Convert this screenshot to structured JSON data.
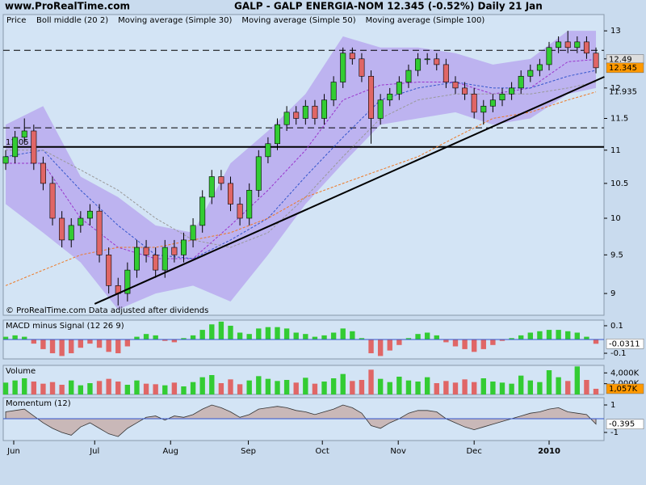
{
  "header": {
    "site": "www.ProRealTime.com",
    "title": "GALP - GALP ENERGIA-NOM    12.345 (-0.52%)    Daily  21 Jan"
  },
  "chart_data": {
    "type": "candlestick",
    "price_label": "Price",
    "footer": "© ProRealTime.com  Data adjusted after dividends",
    "log": true,
    "ylim": [
      8.73,
      13.3
    ],
    "yticks": [
      9,
      9.5,
      10,
      10.5,
      11,
      11.5,
      12,
      12.5,
      13
    ],
    "xlim": [
      -0.26,
      63.86
    ],
    "xticks": [
      {
        "value": 0.86,
        "label": "Jun"
      },
      {
        "value": 9.5,
        "label": "Jul"
      },
      {
        "value": 17.6,
        "label": "Aug"
      },
      {
        "value": 25.9,
        "label": "Sep"
      },
      {
        "value": 33.8,
        "label": "Oct"
      },
      {
        "value": 41.9,
        "label": "Nov"
      },
      {
        "value": 50,
        "label": "Dec"
      },
      {
        "value": 58,
        "label": "2010"
      }
    ],
    "up_color": "#33cc33",
    "down_color": "#e06666",
    "open": [
      10.8,
      10.9,
      11.2,
      11.3,
      10.8,
      10.5,
      10.0,
      9.7,
      9.9,
      10.0,
      10.1,
      9.5,
      9.1,
      9.0,
      9.3,
      9.6,
      9.5,
      9.3,
      9.6,
      9.5,
      9.7,
      9.9,
      10.3,
      10.6,
      10.5,
      10.2,
      10.0,
      10.4,
      10.9,
      11.1,
      11.4,
      11.6,
      11.5,
      11.7,
      11.5,
      11.8,
      12.1,
      12.6,
      12.5,
      12.2,
      11.5,
      11.8,
      11.9,
      12.1,
      12.3,
      12.5,
      12.5,
      12.4,
      12.1,
      12.0,
      11.9,
      11.6,
      11.7,
      11.8,
      11.9,
      12.0,
      12.2,
      12.3,
      12.4,
      12.7,
      12.8,
      12.7,
      12.8,
      12.6
    ],
    "high": [
      11.0,
      11.3,
      11.5,
      11.4,
      10.9,
      10.6,
      10.1,
      10.0,
      10.1,
      10.2,
      10.2,
      9.6,
      9.2,
      9.4,
      9.7,
      9.7,
      9.6,
      9.7,
      9.7,
      9.8,
      10.0,
      10.4,
      10.7,
      10.7,
      10.6,
      10.3,
      10.5,
      11.0,
      11.2,
      11.5,
      11.7,
      11.7,
      11.8,
      11.8,
      11.9,
      12.2,
      12.7,
      12.7,
      12.6,
      12.3,
      11.9,
      12.0,
      12.2,
      12.4,
      12.6,
      12.6,
      12.6,
      12.5,
      12.2,
      12.1,
      12.0,
      11.8,
      11.9,
      12.0,
      12.1,
      12.3,
      12.4,
      12.5,
      12.8,
      12.9,
      13.0,
      12.9,
      12.9,
      12.7
    ],
    "low": [
      10.7,
      10.8,
      11.1,
      10.7,
      10.4,
      9.9,
      9.6,
      9.6,
      9.8,
      9.9,
      9.4,
      9.0,
      8.85,
      8.9,
      9.2,
      9.4,
      9.2,
      9.2,
      9.4,
      9.4,
      9.6,
      9.8,
      10.2,
      10.4,
      10.1,
      9.9,
      9.9,
      10.3,
      10.8,
      11.0,
      11.3,
      11.4,
      11.4,
      11.4,
      11.4,
      11.7,
      12.0,
      12.4,
      12.1,
      11.1,
      11.4,
      11.7,
      11.8,
      12.0,
      12.2,
      12.4,
      12.3,
      12.0,
      11.9,
      11.8,
      11.5,
      11.4,
      11.6,
      11.7,
      11.8,
      11.9,
      12.1,
      12.2,
      12.3,
      12.6,
      12.6,
      12.6,
      12.5,
      12.25
    ],
    "close": [
      10.9,
      11.2,
      11.3,
      10.8,
      10.5,
      10.0,
      9.7,
      9.9,
      10.0,
      10.1,
      9.5,
      9.1,
      9.0,
      9.3,
      9.6,
      9.5,
      9.3,
      9.6,
      9.5,
      9.7,
      9.9,
      10.3,
      10.6,
      10.5,
      10.2,
      10.0,
      10.4,
      10.9,
      11.1,
      11.4,
      11.6,
      11.5,
      11.7,
      11.5,
      11.8,
      12.1,
      12.6,
      12.5,
      12.2,
      11.5,
      11.8,
      11.9,
      12.1,
      12.3,
      12.5,
      12.5,
      12.4,
      12.1,
      12.0,
      11.9,
      11.6,
      11.7,
      11.8,
      11.9,
      12.0,
      12.2,
      12.3,
      12.4,
      12.7,
      12.8,
      12.7,
      12.8,
      12.6,
      12.345
    ],
    "band": {
      "color": "#bdb3f0",
      "x": [
        0,
        4,
        8,
        12,
        16,
        20,
        24,
        28,
        32,
        36,
        40,
        44,
        48,
        52,
        56,
        60,
        63
      ],
      "upper": [
        11.4,
        11.7,
        10.6,
        10.3,
        9.9,
        9.8,
        10.8,
        11.3,
        11.9,
        12.9,
        12.7,
        12.7,
        12.6,
        12.4,
        12.5,
        13.0,
        13.0
      ],
      "lower": [
        10.2,
        9.8,
        9.4,
        8.8,
        9.0,
        9.1,
        8.9,
        9.5,
        10.2,
        10.8,
        11.4,
        11.5,
        11.6,
        11.4,
        11.5,
        11.9,
        12.0
      ]
    },
    "series": [
      {
        "name": "Boll middle (20 2)",
        "color": "#9933cc",
        "dash": "3,2",
        "x": [
          0,
          4,
          8,
          12,
          16,
          20,
          24,
          28,
          32,
          36,
          40,
          44,
          48,
          52,
          56,
          60,
          63
        ],
        "values": [
          10.8,
          10.8,
          10.0,
          9.6,
          9.45,
          9.45,
          9.9,
          10.4,
          11.0,
          11.8,
          12.05,
          12.1,
          12.1,
          11.9,
          12.0,
          12.45,
          12.49
        ]
      },
      {
        "name": "Moving average (Simple 30)",
        "color": "#3355cc",
        "dash": "3,2",
        "x": [
          0,
          4,
          8,
          12,
          16,
          20,
          24,
          28,
          32,
          36,
          40,
          44,
          48,
          52,
          56,
          60,
          63
        ],
        "values": [
          10.9,
          11.0,
          10.4,
          9.9,
          9.5,
          9.45,
          9.7,
          10.0,
          10.6,
          11.2,
          11.8,
          12.0,
          12.1,
          12.0,
          12.0,
          12.2,
          12.3
        ]
      },
      {
        "name": "Moving average (Simple 50)",
        "color": "#999999",
        "dash": "3,2",
        "x": [
          0,
          4,
          8,
          12,
          16,
          20,
          24,
          28,
          32,
          36,
          40,
          44,
          48,
          52,
          56,
          60,
          63
        ],
        "values": [
          11.0,
          11.0,
          10.7,
          10.4,
          10.0,
          9.7,
          9.6,
          9.8,
          10.3,
          10.9,
          11.5,
          11.8,
          11.9,
          11.9,
          11.9,
          12.0,
          12.1
        ]
      },
      {
        "name": "Moving average (Simple 100)",
        "color": "#ee7722",
        "dash": "3,2",
        "x": [
          0,
          4,
          8,
          12,
          16,
          20,
          24,
          28,
          32,
          36,
          40,
          44,
          48,
          52,
          56,
          60,
          63
        ],
        "values": [
          9.1,
          9.3,
          9.5,
          9.6,
          9.6,
          9.7,
          9.8,
          10.0,
          10.3,
          10.5,
          10.7,
          10.9,
          11.2,
          11.5,
          11.6,
          11.8,
          11.935
        ]
      }
    ],
    "levels": [
      {
        "value": 12.65,
        "style": "dashed"
      },
      {
        "value": 11.35,
        "style": "dashed"
      },
      {
        "value": 11.05,
        "style": "solid",
        "label": "11.05"
      }
    ],
    "trendline": {
      "x": [
        9.5,
        63.9
      ],
      "values": [
        8.87,
        12.19
      ]
    },
    "last_labels": [
      {
        "value": 12.49,
        "color": "#dddddd"
      },
      {
        "value": 12.345,
        "color": "#ff9900"
      },
      {
        "value": 11.935,
        "color": "none"
      }
    ],
    "panels": [
      {
        "name": "MACD minus Signal (12 26 9)",
        "kind": "histogram",
        "ylim": [
          -0.141,
          0.141
        ],
        "yticks": [
          0.1,
          -0.1
        ],
        "values": [
          0.02,
          0.03,
          0.02,
          -0.03,
          -0.07,
          -0.1,
          -0.12,
          -0.1,
          -0.06,
          -0.03,
          -0.06,
          -0.09,
          -0.1,
          -0.05,
          0.02,
          0.04,
          0.03,
          -0.01,
          -0.02,
          0.01,
          0.03,
          0.07,
          0.11,
          0.13,
          0.1,
          0.05,
          0.04,
          0.08,
          0.09,
          0.09,
          0.08,
          0.05,
          0.04,
          0.02,
          0.03,
          0.05,
          0.08,
          0.06,
          0.01,
          -0.1,
          -0.12,
          -0.08,
          -0.04,
          0.01,
          0.04,
          0.05,
          0.03,
          -0.02,
          -0.05,
          -0.07,
          -0.09,
          -0.07,
          -0.04,
          -0.01,
          0.01,
          0.03,
          0.05,
          0.06,
          0.07,
          0.07,
          0.06,
          0.05,
          0.02,
          -0.0311
        ]
      },
      {
        "name": "Volume",
        "kind": "volume",
        "ylim": [
          0,
          5400
        ],
        "yticks": [
          {
            "value": 4000,
            "label": "4,000K"
          },
          {
            "value": 2000,
            "label": "2,000K"
          }
        ],
        "last_label": "1,057K",
        "values": [
          2200,
          2600,
          3000,
          2400,
          2000,
          2300,
          1800,
          2600,
          1700,
          2100,
          2500,
          2900,
          2400,
          1800,
          2600,
          2000,
          1900,
          1700,
          2200,
          1500,
          2300,
          3200,
          3600,
          2100,
          2800,
          1900,
          2600,
          3400,
          2900,
          2500,
          2700,
          2200,
          3100,
          2000,
          2400,
          3000,
          3800,
          2500,
          2700,
          4600,
          2900,
          2300,
          3300,
          2600,
          2400,
          3200,
          2100,
          2500,
          2200,
          2800,
          2300,
          3000,
          2400,
          2200,
          2000,
          3500,
          2600,
          2300,
          4500,
          3200,
          2500,
          5200,
          2700,
          1057
        ]
      },
      {
        "name": "Momentum (12)",
        "kind": "area",
        "ylim": [
          -1.59,
          1.53
        ],
        "yticks": [
          1,
          -1
        ],
        "values": [
          0.5,
          0.6,
          0.7,
          0.2,
          -0.3,
          -0.7,
          -1.0,
          -1.2,
          -0.6,
          -0.3,
          -0.7,
          -1.1,
          -1.3,
          -0.7,
          -0.3,
          0.1,
          0.2,
          -0.1,
          0.2,
          0.1,
          0.3,
          0.7,
          1.0,
          0.8,
          0.5,
          0.1,
          0.3,
          0.7,
          0.8,
          0.9,
          0.8,
          0.6,
          0.5,
          0.3,
          0.5,
          0.7,
          1.0,
          0.8,
          0.4,
          -0.5,
          -0.7,
          -0.3,
          0.0,
          0.4,
          0.6,
          0.6,
          0.5,
          0.0,
          -0.3,
          -0.6,
          -0.8,
          -0.6,
          -0.4,
          -0.2,
          0.0,
          0.2,
          0.4,
          0.5,
          0.7,
          0.8,
          0.5,
          0.4,
          0.3,
          -0.395
        ]
      }
    ]
  }
}
